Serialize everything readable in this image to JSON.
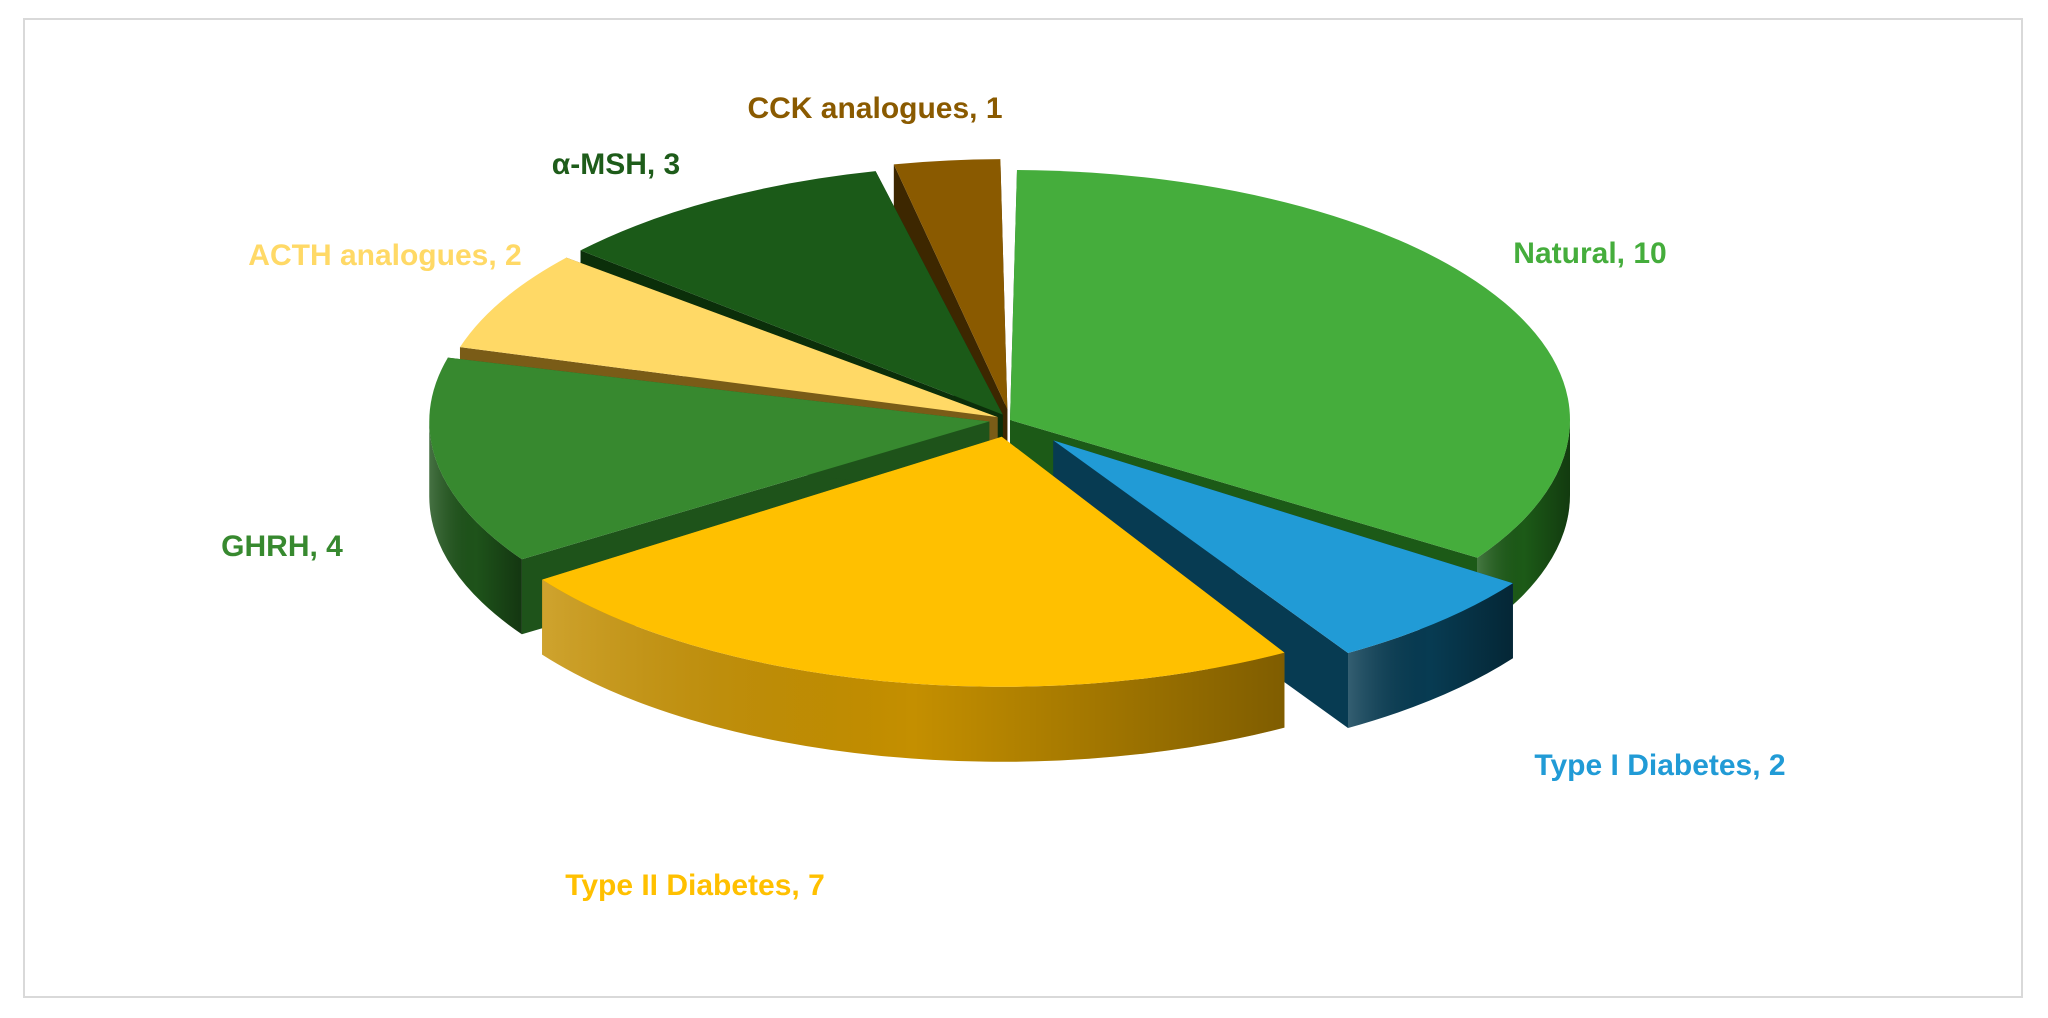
{
  "chart_data": {
    "type": "pie",
    "title": "",
    "legend": "none",
    "slices": [
      {
        "label": "Natural, 10",
        "name": "Natural",
        "value": 10,
        "color": "#45AD3C",
        "side": "#1C5A17",
        "label_color": "#45AD3C",
        "explode": 0.0
      },
      {
        "label": "Type I Diabetes, 2",
        "name": "Type I Diabetes",
        "value": 2,
        "color": "#219BD6",
        "side": "#073B52",
        "label_color": "#219BD6",
        "explode": 0.9
      },
      {
        "label": "Type II Diabetes, 7",
        "name": "Type II Diabetes",
        "value": 7,
        "color": "#FFC000",
        "side": "#B08200",
        "label_color": "#FFC000",
        "explode": 0.55
      },
      {
        "label": "GHRH, 4",
        "name": "GHRH",
        "value": 4,
        "color": "#37892F",
        "side": "#1E531A",
        "label_color": "#37892F",
        "explode": 0.3
      },
      {
        "label": "ACTH analogues, 2",
        "name": "ACTH analogues",
        "value": 2,
        "color": "#FFD966",
        "side": "#7A5C17",
        "label_color": "#FFD966",
        "explode": 0.2
      },
      {
        "label": "α-MSH, 3",
        "name": "α-MSH",
        "value": 3,
        "color": "#1B5A18",
        "side": "#0B2F0A",
        "label_color": "#1E5C1A",
        "explode": 0.2
      },
      {
        "label": "CCK analogues, 1",
        "name": "CCK analogues",
        "value": 1,
        "color": "#8A5A00",
        "side": "#3D2700",
        "label_color": "#8A5A00",
        "explode": 0.35
      }
    ]
  }
}
